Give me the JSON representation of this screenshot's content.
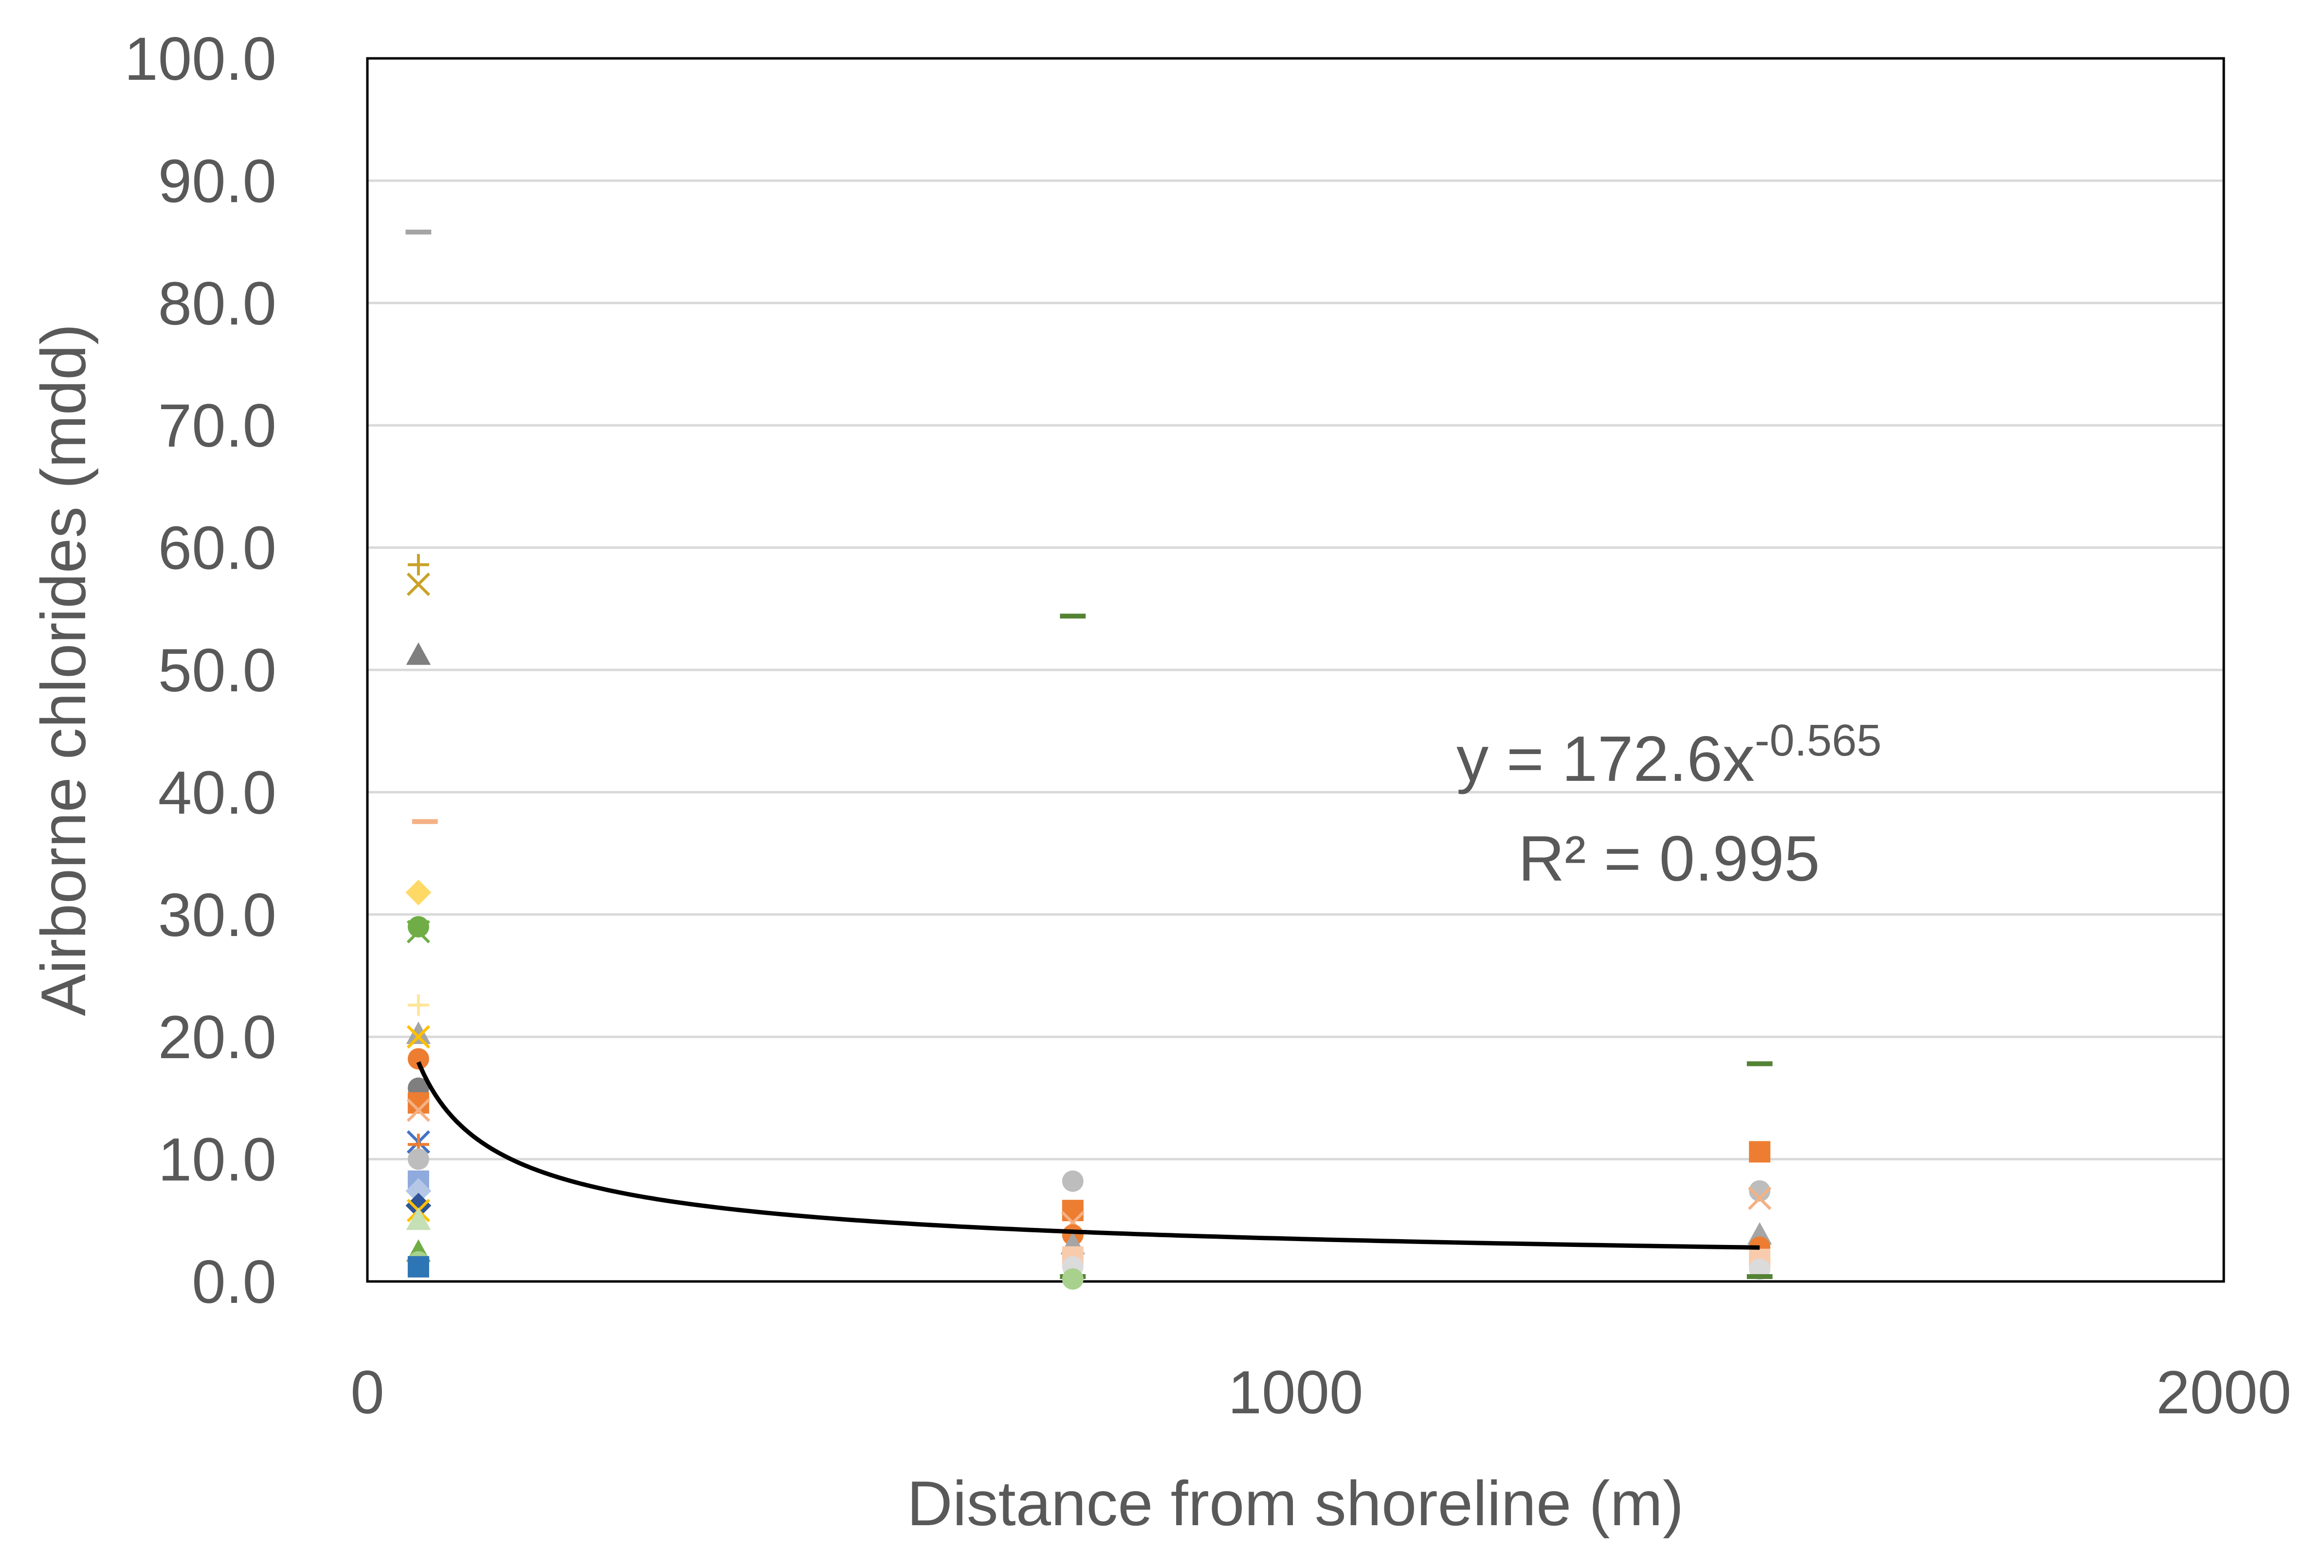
{
  "chart_data": {
    "type": "scatter",
    "xlabel": "Distance from shoreline (m)",
    "ylabel": "Airborne chlorides (mdd)",
    "xlim": [
      0,
      2000
    ],
    "ylim": [
      0,
      100
    ],
    "x_ticks": [
      "0",
      "1000",
      "2000"
    ],
    "y_ticks": [
      "0.0",
      "10.0",
      "20.0",
      "30.0",
      "40.0",
      "50.0",
      "60.0",
      "70.0",
      "80.0",
      "90.0",
      "100.0"
    ],
    "grid": "horizontal",
    "legend": "none",
    "points": [
      {
        "x": 55,
        "y": 85.8,
        "marker": "dash",
        "color": "#a5a5a5"
      },
      {
        "x": 55,
        "y": 58.6,
        "marker": "plus",
        "color": "#c9a227"
      },
      {
        "x": 55,
        "y": 57.0,
        "marker": "x",
        "color": "#c9a227"
      },
      {
        "x": 55,
        "y": 51.2,
        "marker": "triangle",
        "color": "#7f7f7f"
      },
      {
        "x": 62,
        "y": 37.6,
        "marker": "dash",
        "color": "#f4b183"
      },
      {
        "x": 55,
        "y": 31.8,
        "marker": "diamond",
        "color": "#ffd966"
      },
      {
        "x": 55,
        "y": 29.0,
        "marker": "circle",
        "color": "#70ad47"
      },
      {
        "x": 55,
        "y": 28.6,
        "marker": "x",
        "color": "#70ad47"
      },
      {
        "x": 55,
        "y": 22.6,
        "marker": "plus",
        "color": "#ffe699"
      },
      {
        "x": 55,
        "y": 20.2,
        "marker": "triangle",
        "color": "#a5a5a5"
      },
      {
        "x": 55,
        "y": 20.0,
        "marker": "x",
        "color": "#ffc000"
      },
      {
        "x": 55,
        "y": 18.2,
        "marker": "circle",
        "color": "#ed7d31"
      },
      {
        "x": 55,
        "y": 15.8,
        "marker": "circle",
        "color": "#7f7f7f"
      },
      {
        "x": 55,
        "y": 14.6,
        "marker": "square",
        "color": "#ed7d31"
      },
      {
        "x": 55,
        "y": 14.0,
        "marker": "x",
        "color": "#f4b183"
      },
      {
        "x": 55,
        "y": 11.4,
        "marker": "x",
        "color": "#4472c4"
      },
      {
        "x": 55,
        "y": 11.2,
        "marker": "plus",
        "color": "#ed7d31"
      },
      {
        "x": 55,
        "y": 10.0,
        "marker": "circle",
        "color": "#bdbdbd"
      },
      {
        "x": 55,
        "y": 8.2,
        "marker": "square",
        "color": "#8faadc"
      },
      {
        "x": 55,
        "y": 7.4,
        "marker": "diamond",
        "color": "#b4c7e7"
      },
      {
        "x": 55,
        "y": 6.2,
        "marker": "diamond",
        "color": "#2f5597"
      },
      {
        "x": 55,
        "y": 5.8,
        "marker": "x",
        "color": "#ffc000"
      },
      {
        "x": 55,
        "y": 5.0,
        "marker": "triangle",
        "color": "#c5e0b4"
      },
      {
        "x": 55,
        "y": 2.4,
        "marker": "triangle",
        "color": "#70ad47"
      },
      {
        "x": 55,
        "y": 1.6,
        "marker": "circle",
        "color": "#a9d18e"
      },
      {
        "x": 55,
        "y": 1.2,
        "marker": "square",
        "color": "#2e75b6"
      },
      {
        "x": 760,
        "y": 54.4,
        "marker": "dash",
        "color": "#548235"
      },
      {
        "x": 760,
        "y": 8.2,
        "marker": "circle",
        "color": "#bdbdbd"
      },
      {
        "x": 760,
        "y": 5.8,
        "marker": "square",
        "color": "#ed7d31"
      },
      {
        "x": 760,
        "y": 4.8,
        "marker": "x",
        "color": "#f4b183"
      },
      {
        "x": 760,
        "y": 3.8,
        "marker": "circle",
        "color": "#ed7d31"
      },
      {
        "x": 760,
        "y": 3.0,
        "marker": "triangle",
        "color": "#a5a5a5"
      },
      {
        "x": 760,
        "y": 2.0,
        "marker": "square",
        "color": "#f8cbad"
      },
      {
        "x": 760,
        "y": 1.2,
        "marker": "circle",
        "color": "#dbdbdb"
      },
      {
        "x": 760,
        "y": 0.4,
        "marker": "dash",
        "color": "#548235"
      },
      {
        "x": 760,
        "y": 0.2,
        "marker": "circle",
        "color": "#a9d18e"
      },
      {
        "x": 1500,
        "y": 17.8,
        "marker": "dash",
        "color": "#548235"
      },
      {
        "x": 1500,
        "y": 10.6,
        "marker": "square",
        "color": "#ed7d31"
      },
      {
        "x": 1500,
        "y": 7.4,
        "marker": "circle",
        "color": "#bdbdbd"
      },
      {
        "x": 1500,
        "y": 6.8,
        "marker": "x",
        "color": "#f4b183"
      },
      {
        "x": 1500,
        "y": 3.8,
        "marker": "triangle",
        "color": "#a5a5a5"
      },
      {
        "x": 1500,
        "y": 2.8,
        "marker": "circle",
        "color": "#ed7d31"
      },
      {
        "x": 1500,
        "y": 1.8,
        "marker": "square",
        "color": "#f8cbad"
      },
      {
        "x": 1500,
        "y": 1.0,
        "marker": "circle",
        "color": "#dbdbdb"
      },
      {
        "x": 1500,
        "y": 0.4,
        "marker": "dash",
        "color": "#548235"
      }
    ],
    "trendline": {
      "type": "power",
      "a": 172.6,
      "b": -0.565,
      "x_range": [
        55,
        1500
      ],
      "equation_text": "y = 172.6x",
      "equation_exponent": "-0.565",
      "r2_text": "R² = 0.995",
      "color": "#000000"
    }
  }
}
